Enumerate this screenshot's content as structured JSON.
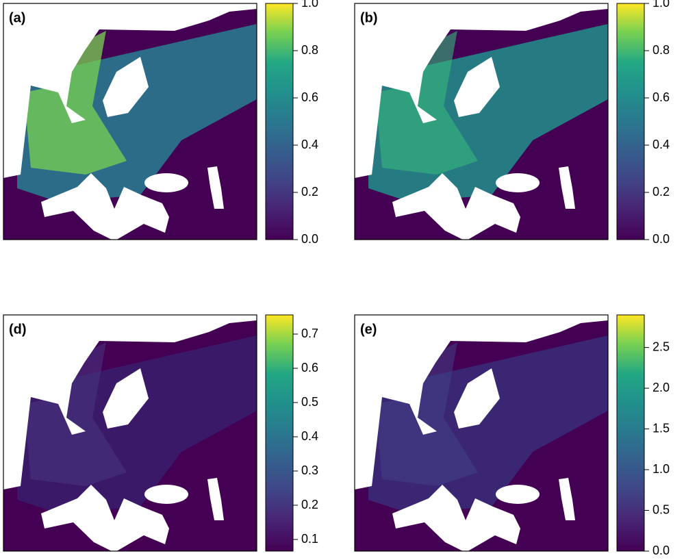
{
  "panels": [
    {
      "label": "(a)",
      "colormap": "viridis",
      "clim": [
        0,
        1
      ],
      "ticks": [
        {
          "value": 0,
          "label": "0.0"
        },
        0.2,
        0.4,
        0.6,
        0.8,
        {
          "value": 1,
          "label": "1.0"
        }
      ]
    },
    {
      "label": "(b)",
      "colormap": "viridis",
      "clim": [
        0,
        1
      ],
      "ticks": [
        {
          "value": 0,
          "label": "0.0"
        },
        0.2,
        0.4,
        0.6,
        0.8,
        {
          "value": 1,
          "label": "1.0"
        }
      ]
    },
    {
      "label": "(d)",
      "colormap": "viridis",
      "clim": [
        0.066,
        0.756
      ],
      "ticks": [
        0.1,
        0.2,
        0.3,
        0.4,
        0.5,
        0.6,
        0.7
      ]
    },
    {
      "label": "(e)",
      "colormap": "viridis",
      "clim": [
        0,
        2.9
      ],
      "ticks": [
        {
          "value": 0,
          "label": "0.0"
        },
        0.5,
        {
          "value": 1,
          "label": "1.0"
        },
        1.5,
        {
          "value": 2,
          "label": "2.0"
        },
        2.5
      ]
    }
  ]
}
